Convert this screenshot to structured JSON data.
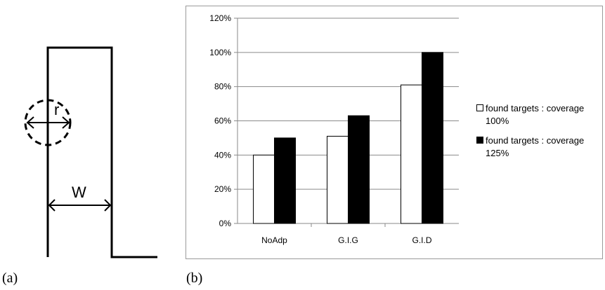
{
  "captions": {
    "a": "(a)",
    "b": "(b)"
  },
  "diagram": {
    "radius_label": "r",
    "width_label": "W"
  },
  "chart_data": {
    "type": "bar",
    "categories": [
      "NoAdp",
      "G.I.G",
      "G.I.D"
    ],
    "series": [
      {
        "name": "found targets : coverage 100%",
        "color": "#ffffff",
        "values": [
          40,
          51,
          81
        ]
      },
      {
        "name": "found targets : coverage 125%",
        "color": "#000000",
        "values": [
          50,
          63,
          100
        ]
      }
    ],
    "yticks": [
      "0%",
      "20%",
      "40%",
      "60%",
      "80%",
      "100%",
      "120%"
    ],
    "ylim": [
      0,
      120
    ],
    "grid": true,
    "legend_position": "right",
    "title": "",
    "xlabel": "",
    "ylabel": ""
  },
  "legend": {
    "items": [
      {
        "line1": "found targets : coverage",
        "line2": "100%"
      },
      {
        "line1": "found targets : coverage",
        "line2": "125%"
      }
    ]
  }
}
